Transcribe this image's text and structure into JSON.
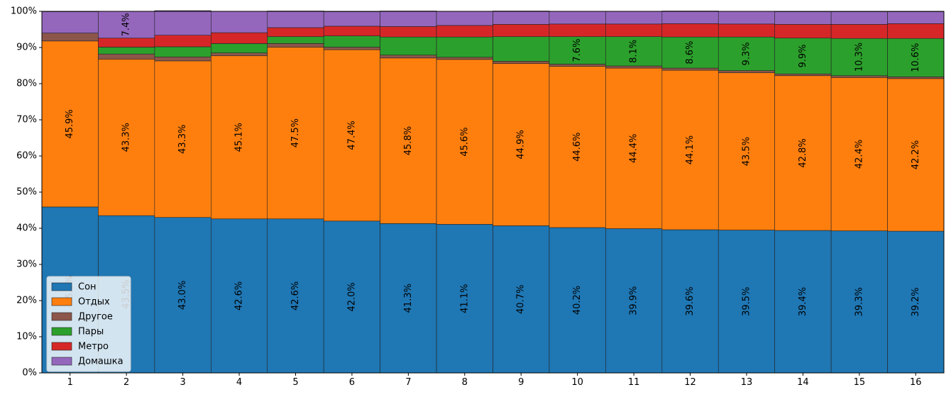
{
  "chart_data": {
    "type": "bar",
    "stacked": true,
    "categories": [
      "1",
      "2",
      "3",
      "4",
      "5",
      "6",
      "7",
      "8",
      "9",
      "10",
      "11",
      "12",
      "13",
      "14",
      "15",
      "16"
    ],
    "ylim": [
      0,
      100
    ],
    "yticks": [
      "0%",
      "10%",
      "20%",
      "30%",
      "40%",
      "50%",
      "60%",
      "70%",
      "80%",
      "90%",
      "100%"
    ],
    "legend_position": "lower-left",
    "series": [
      {
        "name": "Сон",
        "color": "#1f77b4",
        "values": [
          45.9,
          43.5,
          43.0,
          42.6,
          42.6,
          42.0,
          41.3,
          41.1,
          40.7,
          40.2,
          39.9,
          39.6,
          39.5,
          39.4,
          39.3,
          39.2
        ],
        "labels": [
          "45.9%",
          "43.5%",
          "43.0%",
          "42.6%",
          "42.6%",
          "42.0%",
          "41.3%",
          "41.1%",
          "40.7%",
          "40.2%",
          "39.9%",
          "39.6%",
          "39.5%",
          "39.4%",
          "39.3%",
          "39.2%"
        ]
      },
      {
        "name": "Отдых",
        "color": "#ff7f0e",
        "values": [
          45.9,
          43.3,
          43.3,
          45.1,
          47.5,
          47.4,
          45.8,
          45.6,
          44.9,
          44.6,
          44.4,
          44.1,
          43.5,
          42.8,
          42.4,
          42.2
        ],
        "labels": [
          "45.9%",
          "43.3%",
          "43.3%",
          "45.1%",
          "47.5%",
          "47.4%",
          "45.8%",
          "45.6%",
          "44.9%",
          "44.6%",
          "44.4%",
          "44.1%",
          "43.5%",
          "42.8%",
          "42.4%",
          "42.2%"
        ]
      },
      {
        "name": "Другое",
        "color": "#8c564b",
        "values": [
          2.2,
          1.4,
          1.1,
          0.8,
          1.0,
          0.7,
          0.8,
          0.6,
          0.6,
          0.6,
          0.6,
          0.6,
          0.6,
          0.5,
          0.5,
          0.5
        ],
        "labels": [
          "",
          "",
          "",
          "",
          "",
          "",
          "",
          "",
          "",
          "",
          "",
          "",
          "",
          "",
          "",
          ""
        ]
      },
      {
        "name": "Пары",
        "color": "#2ca02c",
        "values": [
          0,
          1.9,
          2.8,
          2.6,
          1.9,
          3.1,
          5.0,
          5.6,
          6.8,
          7.6,
          8.1,
          8.6,
          9.3,
          9.9,
          10.3,
          10.6
        ],
        "labels": [
          "",
          "",
          "",
          "",
          "",
          "",
          "",
          "",
          "",
          "7.6%",
          "8.1%",
          "8.6%",
          "9.3%",
          "9.9%",
          "10.3%",
          "10.6%"
        ]
      },
      {
        "name": "Метро",
        "color": "#d62728",
        "values": [
          0,
          2.5,
          3.2,
          3.0,
          2.5,
          2.7,
          2.9,
          3.2,
          3.4,
          3.5,
          3.5,
          3.7,
          3.6,
          3.8,
          3.9,
          4.1
        ],
        "labels": [
          "",
          "",
          "",
          "",
          "",
          "",
          "",
          "",
          "",
          "",
          "",
          "",
          "",
          "",
          "",
          ""
        ]
      },
      {
        "name": "Домашка",
        "color": "#9467bd",
        "values": [
          5.9,
          7.4,
          6.8,
          5.9,
          4.6,
          4.0,
          4.3,
          3.9,
          3.7,
          3.5,
          3.5,
          3.5,
          3.5,
          3.5,
          3.5,
          3.3
        ],
        "labels": [
          "",
          "7.4%",
          "",
          "",
          "",
          "",
          "",
          "",
          "",
          "",
          "",
          "",
          "",
          "",
          "",
          ""
        ]
      }
    ]
  }
}
